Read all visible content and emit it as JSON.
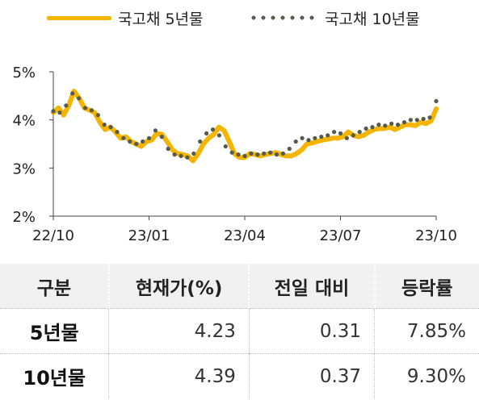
{
  "chart_data": {
    "type": "line",
    "yticks": [
      "5%",
      "4%",
      "3%",
      "2%"
    ],
    "ylim": [
      2,
      5
    ],
    "xticks": [
      "22/10",
      "23/01",
      "23/04",
      "23/07",
      "23/10"
    ],
    "grid": false,
    "legend_placement": "top",
    "series": [
      {
        "name": "국고채 5년물",
        "style": "solid",
        "color": "#f5b400",
        "values": [
          4.15,
          4.25,
          4.1,
          4.3,
          4.6,
          4.45,
          4.25,
          4.2,
          4.15,
          3.95,
          3.8,
          3.85,
          3.75,
          3.62,
          3.65,
          3.55,
          3.5,
          3.45,
          3.55,
          3.58,
          3.72,
          3.7,
          3.55,
          3.38,
          3.3,
          3.28,
          3.25,
          3.15,
          3.3,
          3.5,
          3.62,
          3.7,
          3.85,
          3.78,
          3.55,
          3.3,
          3.22,
          3.22,
          3.3,
          3.28,
          3.25,
          3.28,
          3.3,
          3.32,
          3.28,
          3.25,
          3.25,
          3.3,
          3.38,
          3.5,
          3.52,
          3.55,
          3.58,
          3.6,
          3.62,
          3.62,
          3.65,
          3.75,
          3.68,
          3.65,
          3.68,
          3.75,
          3.8,
          3.82,
          3.82,
          3.85,
          3.8,
          3.85,
          3.9,
          3.9,
          3.88,
          3.95,
          3.92,
          3.98,
          4.23
        ]
      },
      {
        "name": "국고채 10년물",
        "style": "dotted",
        "color": "#555a4a",
        "values": [
          4.18,
          4.15,
          4.3,
          4.55,
          4.45,
          4.25,
          4.2,
          4.1,
          3.9,
          3.85,
          3.75,
          3.62,
          3.55,
          3.5,
          3.55,
          3.62,
          3.78,
          3.65,
          3.4,
          3.28,
          3.25,
          3.22,
          3.3,
          3.55,
          3.72,
          3.8,
          3.68,
          3.45,
          3.32,
          3.28,
          3.25,
          3.3,
          3.28,
          3.3,
          3.32,
          3.28,
          3.3,
          3.4,
          3.55,
          3.62,
          3.58,
          3.62,
          3.65,
          3.68,
          3.75,
          3.72,
          3.62,
          3.68,
          3.75,
          3.82,
          3.85,
          3.9,
          3.88,
          3.92,
          3.9,
          3.95,
          4.0,
          4.0,
          4.02,
          4.05,
          4.39
        ]
      }
    ]
  },
  "legend": {
    "item1": "국고채 5년물",
    "item2": "국고채 10년물"
  },
  "table": {
    "headers": [
      "구분",
      "현재가(%)",
      "전일 대비",
      "등락률"
    ],
    "rows": [
      [
        "5년물",
        "4.23",
        "0.31",
        "7.85%"
      ],
      [
        "10년물",
        "4.39",
        "0.37",
        "9.30%"
      ]
    ]
  }
}
